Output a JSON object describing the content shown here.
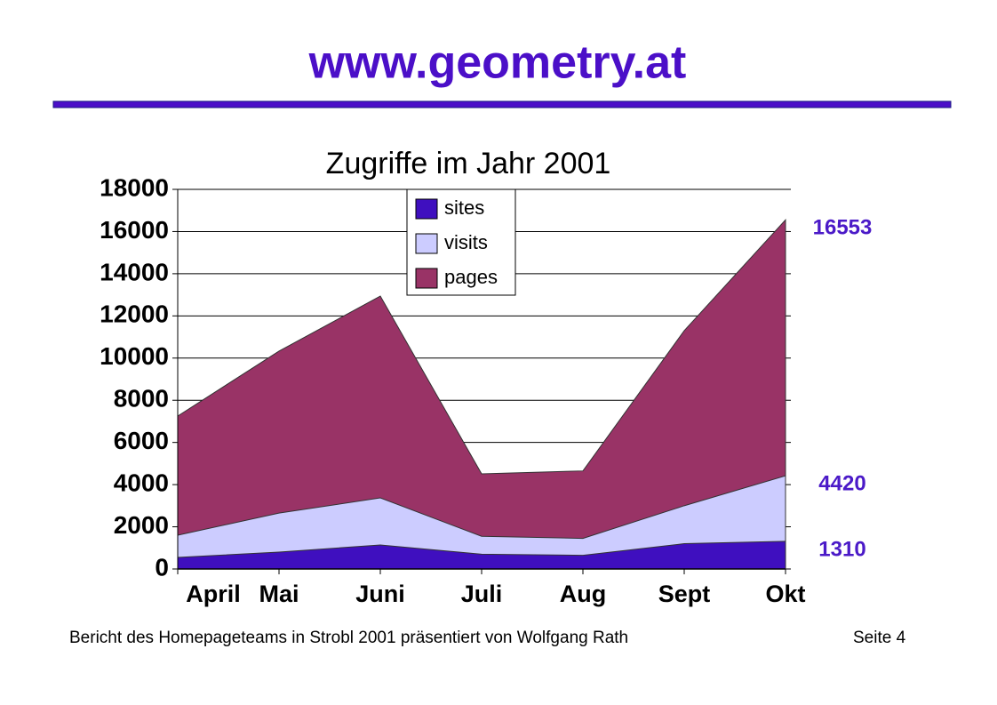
{
  "header": {
    "title": "www.geometry.at"
  },
  "chart_data": {
    "type": "area",
    "title": "Zugriffe im Jahr 2001",
    "categories": [
      "April",
      "Mai",
      "Juni",
      "Juli",
      "Aug",
      "Sept",
      "Okt"
    ],
    "series": [
      {
        "name": "pages",
        "color": "#993366",
        "values": [
          7250,
          10330,
          12940,
          4510,
          4650,
          11300,
          16553
        ]
      },
      {
        "name": "visits",
        "color": "#ccccff",
        "values": [
          1600,
          2650,
          3370,
          1550,
          1450,
          3000,
          4420
        ]
      },
      {
        "name": "sites",
        "color": "#3f0fbf",
        "values": [
          550,
          800,
          1140,
          700,
          650,
          1200,
          1310
        ]
      }
    ],
    "legend_order": [
      "sites",
      "visits",
      "pages"
    ],
    "data_labels": "last",
    "data_label_color": "#4b1ac8",
    "ylim": [
      0,
      18000
    ],
    "yticks": [
      0,
      2000,
      4000,
      6000,
      8000,
      10000,
      12000,
      14000,
      16000,
      18000
    ],
    "grid": true
  },
  "footer": {
    "text": "Bericht des Homepageteams in Strobl 2001 präsentiert von Wolfgang Rath",
    "page": "Seite 4"
  }
}
